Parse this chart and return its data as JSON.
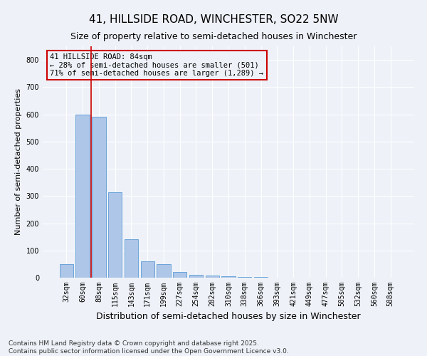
{
  "title": "41, HILLSIDE ROAD, WINCHESTER, SO22 5NW",
  "subtitle": "Size of property relative to semi-detached houses in Winchester",
  "xlabel": "Distribution of semi-detached houses by size in Winchester",
  "ylabel": "Number of semi-detached properties",
  "categories": [
    "32sqm",
    "60sqm",
    "88sqm",
    "115sqm",
    "143sqm",
    "171sqm",
    "199sqm",
    "227sqm",
    "254sqm",
    "282sqm",
    "310sqm",
    "338sqm",
    "366sqm",
    "393sqm",
    "421sqm",
    "449sqm",
    "477sqm",
    "505sqm",
    "532sqm",
    "560sqm",
    "588sqm"
  ],
  "values": [
    50,
    600,
    590,
    315,
    140,
    60,
    50,
    20,
    10,
    8,
    5,
    3,
    2,
    1,
    1,
    0,
    0,
    0,
    0,
    0,
    0
  ],
  "bar_color": "#aec6e8",
  "bar_edge_color": "#5b9bd5",
  "vline_x": 1.5,
  "vline_color": "#cc0000",
  "annotation_text": "41 HILLSIDE ROAD: 84sqm\n← 28% of semi-detached houses are smaller (501)\n71% of semi-detached houses are larger (1,289) →",
  "annotation_box_color": "#cc0000",
  "ylim": [
    0,
    850
  ],
  "yticks": [
    0,
    100,
    200,
    300,
    400,
    500,
    600,
    700,
    800
  ],
  "footer_text": "Contains HM Land Registry data © Crown copyright and database right 2025.\nContains public sector information licensed under the Open Government Licence v3.0.",
  "background_color": "#eef2f8",
  "grid_color": "#ffffff",
  "title_fontsize": 11,
  "subtitle_fontsize": 9,
  "axis_label_fontsize": 8,
  "tick_fontsize": 7,
  "annotation_fontsize": 7.5,
  "footer_fontsize": 6.5
}
